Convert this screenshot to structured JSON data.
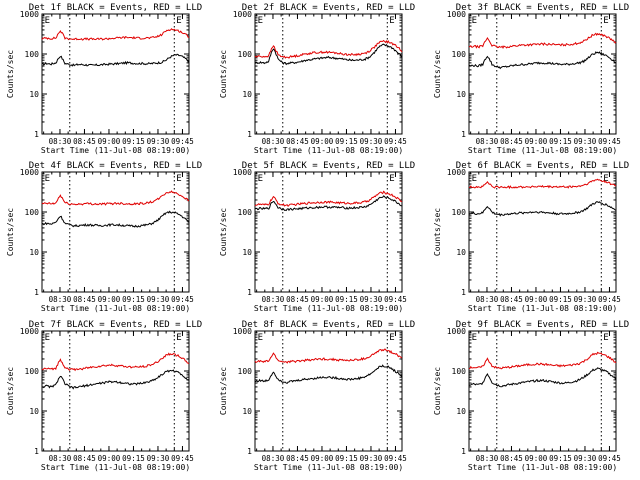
{
  "figure": {
    "background": "#ffffff",
    "colors": {
      "events": "#000000",
      "lld": "#e00000",
      "axes": "#000000"
    }
  },
  "chart_data": [
    {
      "type": "line",
      "title": "Det 1f BLACK = Events, RED = LLD",
      "xlabel": "Start Time (11-Jul-08 08:19:00)",
      "ylabel": "Counts/sec",
      "yscale": "log",
      "ylim": [
        1,
        1000
      ],
      "yticks": [
        "1",
        "10",
        "100",
        "1000"
      ],
      "xticks": [
        "08:30",
        "08:45",
        "09:00",
        "09:15",
        "09:30",
        "09:45"
      ],
      "xlim_minutes_after_start": [
        0,
        90
      ],
      "annotations": [
        "E",
        "E"
      ],
      "vlines_minutes_after_start": [
        17,
        81
      ],
      "series": [
        {
          "name": "Events",
          "color": "#000000",
          "values": [
            55,
            58,
            56,
            60,
            90,
            58,
            55,
            52,
            55,
            54,
            53,
            52,
            53,
            54,
            55,
            56,
            57,
            58,
            60,
            60,
            59,
            58,
            58,
            57,
            58,
            60,
            62,
            70,
            85,
            95,
            92,
            80,
            65
          ]
        },
        {
          "name": "LLD",
          "color": "#e00000",
          "values": [
            240,
            250,
            245,
            250,
            380,
            250,
            240,
            235,
            240,
            238,
            236,
            235,
            236,
            238,
            240,
            245,
            250,
            255,
            260,
            258,
            255,
            250,
            250,
            252,
            255,
            270,
            300,
            380,
            420,
            400,
            370,
            320,
            270
          ]
        }
      ]
    },
    {
      "type": "line",
      "title": "Det 2f BLACK = Events, RED = LLD",
      "xlabel": "Start Time (11-Jul-08 08:19:00)",
      "ylabel": "Counts/sec",
      "yscale": "log",
      "ylim": [
        1,
        1000
      ],
      "yticks": [
        "1",
        "10",
        "100",
        "1000"
      ],
      "xticks": [
        "08:30",
        "08:45",
        "09:00",
        "09:15",
        "09:30",
        "09:45"
      ],
      "xlim_minutes_after_start": [
        0,
        90
      ],
      "annotations": [
        "E",
        "E"
      ],
      "vlines_minutes_after_start": [
        17,
        81
      ],
      "series": [
        {
          "name": "Events",
          "color": "#000000",
          "values": [
            60,
            62,
            60,
            65,
            140,
            75,
            60,
            58,
            60,
            62,
            65,
            70,
            72,
            75,
            78,
            80,
            82,
            80,
            78,
            75,
            72,
            70,
            70,
            72,
            75,
            85,
            110,
            150,
            170,
            160,
            140,
            110,
            85
          ]
        },
        {
          "name": "LLD",
          "color": "#e00000",
          "values": [
            85,
            88,
            86,
            90,
            160,
            95,
            85,
            83,
            86,
            90,
            95,
            100,
            105,
            108,
            110,
            112,
            110,
            108,
            105,
            100,
            98,
            96,
            97,
            100,
            105,
            120,
            150,
            190,
            210,
            200,
            180,
            150,
            120
          ]
        }
      ]
    },
    {
      "type": "line",
      "title": "Det 3f BLACK = Events, RED = LLD",
      "xlabel": "Start Time (11-Jul-08 08:19:00)",
      "ylabel": "Counts/sec",
      "yscale": "log",
      "ylim": [
        1,
        1000
      ],
      "yticks": [
        "1",
        "10",
        "100",
        "1000"
      ],
      "xticks": [
        "08:30",
        "08:45",
        "09:00",
        "09:15",
        "09:30",
        "09:45"
      ],
      "xlim_minutes_after_start": [
        0,
        90
      ],
      "annotations": [
        "E",
        "E"
      ],
      "vlines_minutes_after_start": [
        17,
        81
      ],
      "series": [
        {
          "name": "Events",
          "color": "#000000",
          "values": [
            50,
            52,
            50,
            55,
            90,
            55,
            48,
            46,
            48,
            50,
            52,
            54,
            55,
            56,
            58,
            60,
            60,
            60,
            58,
            56,
            55,
            55,
            56,
            58,
            60,
            66,
            80,
            100,
            110,
            100,
            90,
            75,
            60
          ]
        },
        {
          "name": "LLD",
          "color": "#e00000",
          "values": [
            150,
            155,
            152,
            158,
            250,
            165,
            150,
            148,
            150,
            155,
            160,
            165,
            168,
            170,
            172,
            175,
            178,
            176,
            174,
            170,
            168,
            170,
            175,
            180,
            190,
            210,
            250,
            300,
            320,
            300,
            270,
            230,
            190
          ]
        }
      ]
    },
    {
      "type": "line",
      "title": "Det 4f BLACK = Events, RED = LLD",
      "xlabel": "Start Time (11-Jul-08 08:19:00)",
      "ylabel": "Counts/sec",
      "yscale": "log",
      "ylim": [
        1,
        1000
      ],
      "yticks": [
        "1",
        "10",
        "100",
        "1000"
      ],
      "xticks": [
        "08:30",
        "08:45",
        "09:00",
        "09:15",
        "09:30",
        "09:45"
      ],
      "xlim_minutes_after_start": [
        0,
        90
      ],
      "annotations": [
        "E",
        "E"
      ],
      "vlines_minutes_after_start": [
        17,
        81
      ],
      "series": [
        {
          "name": "Events",
          "color": "#000000",
          "values": [
            50,
            52,
            50,
            55,
            80,
            52,
            48,
            45,
            46,
            47,
            48,
            47,
            46,
            46,
            47,
            48,
            48,
            47,
            46,
            45,
            44,
            45,
            46,
            48,
            52,
            60,
            75,
            95,
            100,
            95,
            85,
            70,
            55
          ]
        },
        {
          "name": "LLD",
          "color": "#e00000",
          "values": [
            160,
            165,
            160,
            165,
            260,
            170,
            160,
            155,
            158,
            160,
            162,
            160,
            158,
            158,
            160,
            162,
            165,
            165,
            162,
            160,
            160,
            162,
            165,
            170,
            180,
            200,
            240,
            300,
            320,
            300,
            270,
            230,
            190
          ]
        }
      ]
    },
    {
      "type": "line",
      "title": "Det 5f BLACK = Events, RED = LLD",
      "xlabel": "Start Time (11-Jul-08 08:19:00)",
      "ylabel": "Counts/sec",
      "yscale": "log",
      "ylim": [
        1,
        1000
      ],
      "yticks": [
        "1",
        "10",
        "100",
        "1000"
      ],
      "xticks": [
        "08:30",
        "08:45",
        "09:00",
        "09:15",
        "09:30",
        "09:45"
      ],
      "xlim_minutes_after_start": [
        0,
        90
      ],
      "annotations": [
        "E",
        "E"
      ],
      "vlines_minutes_after_start": [
        17,
        81
      ],
      "series": [
        {
          "name": "Events",
          "color": "#000000",
          "values": [
            120,
            122,
            120,
            125,
            190,
            130,
            118,
            115,
            118,
            120,
            122,
            125,
            128,
            130,
            132,
            134,
            133,
            132,
            130,
            128,
            126,
            126,
            128,
            130,
            135,
            150,
            180,
            220,
            240,
            225,
            200,
            170,
            140
          ]
        },
        {
          "name": "LLD",
          "color": "#e00000",
          "values": [
            150,
            155,
            150,
            158,
            240,
            165,
            150,
            148,
            150,
            155,
            160,
            165,
            170,
            172,
            175,
            178,
            176,
            174,
            172,
            168,
            166,
            166,
            168,
            172,
            180,
            200,
            240,
            290,
            310,
            290,
            260,
            220,
            180
          ]
        }
      ]
    },
    {
      "type": "line",
      "title": "Det 6f BLACK = Events, RED = LLD",
      "xlabel": "Start Time (11-Jul-08 08:19:00)",
      "ylabel": "Counts/sec",
      "yscale": "log",
      "ylim": [
        1,
        1000
      ],
      "yticks": [
        "1",
        "10",
        "100",
        "1000"
      ],
      "xticks": [
        "08:30",
        "08:45",
        "09:00",
        "09:15",
        "09:30",
        "09:45"
      ],
      "xlim_minutes_after_start": [
        0,
        90
      ],
      "annotations": [
        "E",
        "E"
      ],
      "vlines_minutes_after_start": [
        17,
        81
      ],
      "series": [
        {
          "name": "Events",
          "color": "#000000",
          "values": [
            90,
            92,
            90,
            95,
            140,
            98,
            88,
            85,
            88,
            90,
            92,
            94,
            96,
            98,
            100,
            100,
            98,
            96,
            94,
            92,
            90,
            90,
            92,
            95,
            100,
            110,
            130,
            160,
            175,
            165,
            150,
            130,
            110
          ]
        },
        {
          "name": "LLD",
          "color": "#e00000",
          "values": [
            420,
            425,
            420,
            428,
            560,
            430,
            420,
            415,
            418,
            420,
            422,
            424,
            425,
            426,
            428,
            430,
            430,
            428,
            426,
            424,
            422,
            424,
            426,
            430,
            440,
            470,
            520,
            600,
            640,
            610,
            560,
            500,
            450
          ]
        }
      ]
    },
    {
      "type": "line",
      "title": "Det 7f BLACK = Events, RED = LLD",
      "xlabel": "Start Time (11-Jul-08 08:19:00)",
      "ylabel": "Counts/sec",
      "yscale": "log",
      "ylim": [
        1,
        1000
      ],
      "yticks": [
        "1",
        "10",
        "100",
        "1000"
      ],
      "xticks": [
        "08:30",
        "08:45",
        "09:00",
        "09:15",
        "09:30",
        "09:45"
      ],
      "xlim_minutes_after_start": [
        0,
        90
      ],
      "annotations": [
        "E",
        "E"
      ],
      "vlines_minutes_after_start": [
        17,
        81
      ],
      "series": [
        {
          "name": "Events",
          "color": "#000000",
          "values": [
            40,
            42,
            40,
            45,
            75,
            48,
            40,
            38,
            40,
            42,
            44,
            46,
            48,
            50,
            52,
            54,
            54,
            52,
            50,
            48,
            47,
            48,
            50,
            53,
            58,
            66,
            80,
            95,
            105,
            98,
            88,
            72,
            58
          ]
        },
        {
          "name": "LLD",
          "color": "#e00000",
          "values": [
            110,
            115,
            110,
            118,
            190,
            125,
            110,
            108,
            112,
            115,
            120,
            125,
            130,
            134,
            138,
            140,
            138,
            135,
            130,
            126,
            124,
            126,
            130,
            136,
            145,
            165,
            200,
            250,
            270,
            255,
            230,
            190,
            150
          ]
        }
      ]
    },
    {
      "type": "line",
      "title": "Det 8f BLACK = Events, RED = LLD",
      "xlabel": "Start Time (11-Jul-08 08:19:00)",
      "ylabel": "Counts/sec",
      "yscale": "log",
      "ylim": [
        1,
        1000
      ],
      "yticks": [
        "1",
        "10",
        "100",
        "1000"
      ],
      "xticks": [
        "08:30",
        "08:45",
        "09:00",
        "09:15",
        "09:30",
        "09:45"
      ],
      "xlim_minutes_after_start": [
        0,
        90
      ],
      "annotations": [
        "E",
        "E"
      ],
      "vlines_minutes_after_start": [
        17,
        81
      ],
      "series": [
        {
          "name": "Events",
          "color": "#000000",
          "values": [
            55,
            58,
            55,
            60,
            95,
            62,
            55,
            52,
            55,
            57,
            60,
            62,
            64,
            66,
            68,
            70,
            70,
            68,
            66,
            64,
            62,
            62,
            64,
            67,
            72,
            82,
            100,
            125,
            135,
            125,
            110,
            90,
            72
          ]
        },
        {
          "name": "LLD",
          "color": "#e00000",
          "values": [
            170,
            175,
            170,
            178,
            270,
            185,
            170,
            168,
            172,
            176,
            180,
            185,
            190,
            194,
            198,
            200,
            198,
            195,
            190,
            186,
            184,
            186,
            190,
            196,
            205,
            230,
            270,
            320,
            340,
            320,
            290,
            250,
            210
          ]
        }
      ]
    },
    {
      "type": "line",
      "title": "Det 9f BLACK = Events, RED = LLD",
      "xlabel": "Start Time (11-Jul-08 08:19:00)",
      "ylabel": "Counts/sec",
      "yscale": "log",
      "ylim": [
        1,
        1000
      ],
      "yticks": [
        "1",
        "10",
        "100",
        "1000"
      ],
      "xticks": [
        "08:30",
        "08:45",
        "09:00",
        "09:15",
        "09:30",
        "09:45"
      ],
      "xlim_minutes_after_start": [
        0,
        90
      ],
      "annotations": [
        "E",
        "E"
      ],
      "vlines_minutes_after_start": [
        17,
        81
      ],
      "series": [
        {
          "name": "Events",
          "color": "#000000",
          "values": [
            45,
            47,
            45,
            50,
            85,
            52,
            45,
            42,
            44,
            46,
            48,
            50,
            52,
            54,
            56,
            58,
            58,
            56,
            54,
            52,
            50,
            50,
            52,
            55,
            60,
            70,
            85,
            105,
            115,
            105,
            95,
            78,
            62
          ]
        },
        {
          "name": "LLD",
          "color": "#e00000",
          "values": [
            120,
            125,
            120,
            128,
            200,
            135,
            120,
            118,
            122,
            126,
            130,
            135,
            140,
            144,
            148,
            150,
            148,
            145,
            140,
            136,
            134,
            136,
            140,
            146,
            155,
            175,
            210,
            260,
            280,
            262,
            238,
            200,
            160
          ]
        }
      ]
    }
  ]
}
